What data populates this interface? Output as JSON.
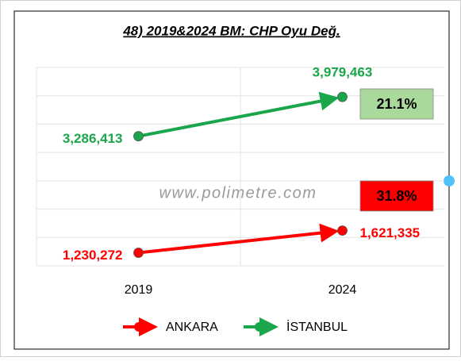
{
  "chart_data": {
    "type": "line",
    "title": "48) 2019&2024 BM: CHP Oyu Değ.",
    "watermark": "www.polimetre.com",
    "categories": [
      "2019",
      "2024"
    ],
    "series": [
      {
        "name": "ANKARA",
        "color": "#ff0000",
        "values": [
          1230272,
          1621335
        ],
        "value_labels": [
          "1,230,272",
          "1,621,335"
        ],
        "change": "31.8%",
        "change_color": "#ff0000"
      },
      {
        "name": "İSTANBUL",
        "color": "#1aa64a",
        "values": [
          3286413,
          3979463
        ],
        "value_labels": [
          "3,286,413",
          "3,979,463"
        ],
        "change": "21.1%",
        "change_color": "#a9d99b"
      }
    ],
    "ylim": [
      1000000,
      4500000
    ],
    "yticks": [
      1000000,
      1500000,
      2000000,
      2500000,
      3000000,
      3500000,
      4000000,
      4500000
    ],
    "grid": true,
    "legend": "bottom"
  }
}
